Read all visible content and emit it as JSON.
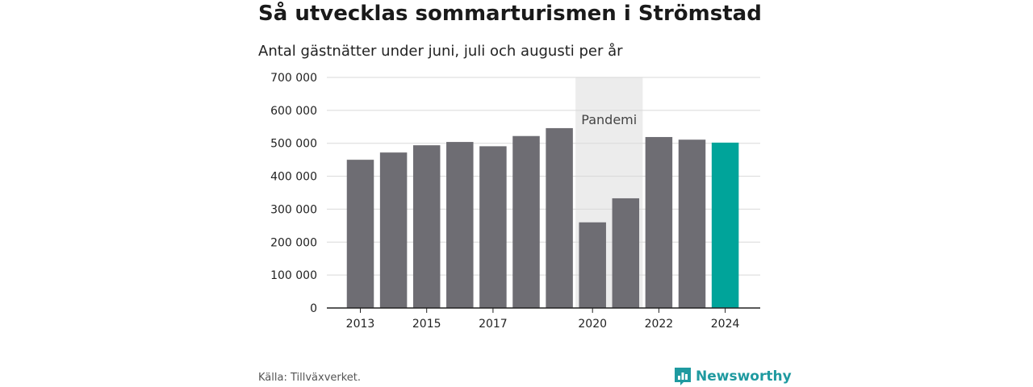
{
  "header": {
    "title": "Så utvecklas sommarturismen i Strömstad",
    "subtitle": "Antal gästnätter under juni, juli och augusti per år"
  },
  "footer": {
    "source": "Källa: Tillväxverket.",
    "brand": "Newsworthy",
    "brand_icon": "bar-chart-speech-bubble-icon"
  },
  "colors": {
    "bar": "#6e6d73",
    "highlight": "#00a49a",
    "pandemic_band": "#ececec",
    "brand": "#1f9aa0"
  },
  "chart_data": {
    "type": "bar",
    "categories": [
      "2013",
      "2014",
      "2015",
      "2016",
      "2017",
      "2018",
      "2019",
      "2020",
      "2021",
      "2022",
      "2023",
      "2024"
    ],
    "values": [
      450000,
      472000,
      494000,
      504000,
      491000,
      522000,
      546000,
      260000,
      333000,
      519000,
      511000,
      502000
    ],
    "highlight_category": "2024",
    "x_tick_labels": [
      "2013",
      "2015",
      "2017",
      "2020",
      "2022",
      "2024"
    ],
    "y_ticks": [
      0,
      100000,
      200000,
      300000,
      400000,
      500000,
      600000,
      700000
    ],
    "y_tick_labels": [
      "0",
      "100 000",
      "200 000",
      "300 000",
      "400 000",
      "500 000",
      "600 000",
      "700 000"
    ],
    "ylim": [
      0,
      700000
    ],
    "grid": true,
    "annotation": {
      "label": "Pandemi",
      "span": [
        "2020",
        "2021"
      ]
    }
  }
}
